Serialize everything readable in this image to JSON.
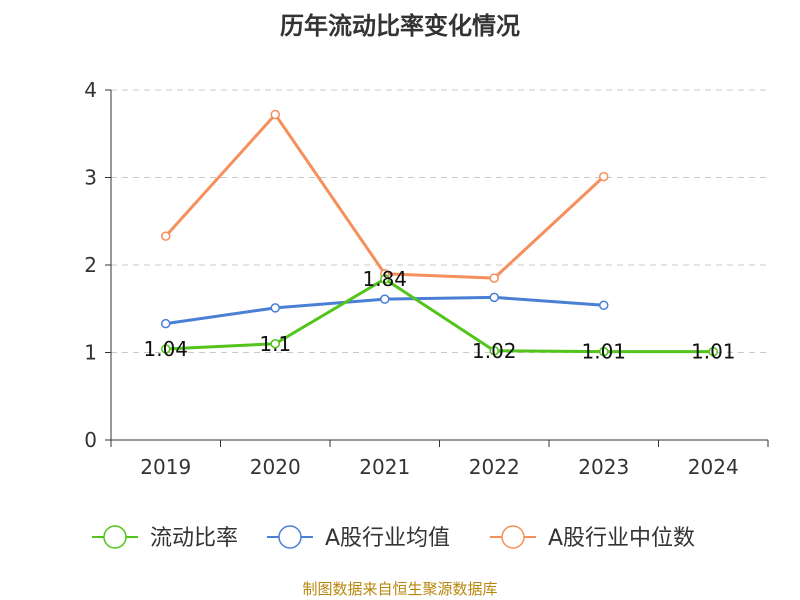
{
  "chart_data": {
    "type": "line",
    "title": "历年流动比率变化情况",
    "categories": [
      "2019",
      "2020",
      "2021",
      "2022",
      "2023",
      "2024"
    ],
    "ylim": [
      0,
      4
    ],
    "yticks": [
      0,
      1,
      2,
      3,
      4
    ],
    "grid": true,
    "legend_position": "bottom",
    "series": [
      {
        "name": "流动比率",
        "color": "#52c41a",
        "values": [
          1.04,
          1.1,
          1.84,
          1.02,
          1.01,
          1.01
        ],
        "labels": [
          "1.04",
          "1.1",
          "1.84",
          "1.02",
          "1.01",
          "1.01"
        ]
      },
      {
        "name": "A股行业均值",
        "color": "#4a7fd6",
        "values": [
          1.33,
          1.51,
          1.61,
          1.63,
          1.54,
          null
        ]
      },
      {
        "name": "A股行业中位数",
        "color": "#f58f5b",
        "values": [
          2.33,
          3.72,
          1.9,
          1.85,
          3.01,
          null
        ]
      }
    ]
  },
  "source": "制图数据来自恒生聚源数据库"
}
